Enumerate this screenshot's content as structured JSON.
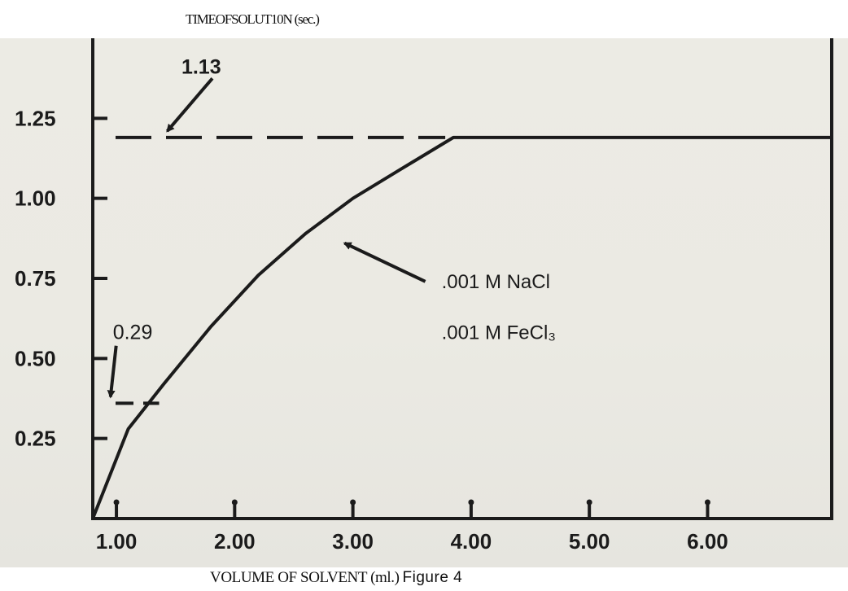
{
  "header": {
    "title": "TIMEOFSOLUT10N (sec.)"
  },
  "caption": {
    "xlabel": "VOLUME OF SOLVENT (ml.)",
    "figure": "Figure 4"
  },
  "chart_data": {
    "type": "line",
    "title": "TIMEOFSOLUT10N (sec.)",
    "xlabel": "VOLUME OF SOLVENT (ml.)",
    "ylabel": "",
    "xlim": [
      0.8,
      7.05
    ],
    "ylim": [
      0.0,
      1.5
    ],
    "x_ticks": [
      1.0,
      2.0,
      3.0,
      4.0,
      5.0,
      6.0
    ],
    "x_tick_labels": [
      "1.00",
      "2.00",
      "3.00",
      "4.00",
      "5.00",
      "6.00"
    ],
    "y_ticks": [
      0.25,
      0.5,
      0.75,
      1.0,
      1.25
    ],
    "y_tick_labels": [
      "0.25",
      "0.50",
      "0.75",
      "1.00",
      "1.25"
    ],
    "series": [
      {
        "x": [
          0.8,
          1.1,
          1.4,
          1.8,
          2.2,
          2.6,
          3.0,
          3.4,
          3.85,
          4.5,
          5.5,
          6.5,
          7.05
        ],
        "y": [
          0.0,
          0.28,
          0.42,
          0.6,
          0.76,
          0.89,
          1.0,
          1.09,
          1.19,
          1.19,
          1.19,
          1.19,
          1.19
        ]
      }
    ],
    "reference_lines": [
      {
        "y": 1.19,
        "x_from": 0.8,
        "x_to": 3.85,
        "style": "dashed"
      },
      {
        "y": 0.36,
        "x_from": 0.8,
        "x_to": 1.43,
        "style": "dashed"
      }
    ],
    "annotations": [
      {
        "text": "1.13",
        "x": 1.55,
        "y": 1.39,
        "arrow_to": [
          1.43,
          1.21
        ]
      },
      {
        "text": "0.29",
        "x": 0.97,
        "y": 0.56,
        "arrow_to": [
          0.95,
          0.38
        ]
      },
      {
        "text": ".001 M NaCl",
        "x": 3.75,
        "y": 0.72,
        "arrow_to": [
          2.93,
          0.86
        ]
      },
      {
        "text": ".001 M FeCl₃",
        "x": 3.75,
        "y": 0.56
      }
    ],
    "grid": false,
    "legend": "none"
  },
  "colors": {
    "paper": "#ecebe4",
    "ink": "#1b1b1b"
  }
}
